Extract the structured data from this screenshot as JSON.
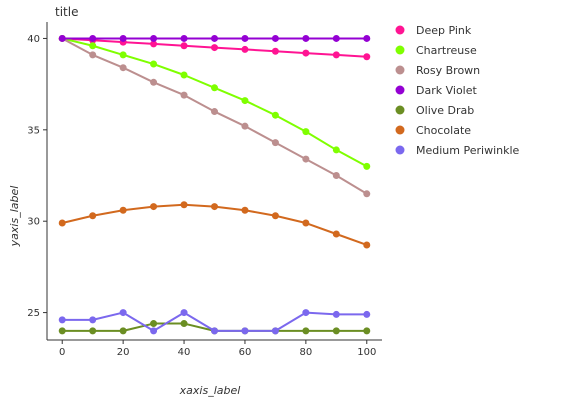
{
  "chart_data": {
    "type": "line",
    "title": "title",
    "xlabel": "xaxis_label",
    "ylabel": "yaxis_label",
    "xlim": [
      -5,
      105
    ],
    "ylim": [
      23.5,
      40.9
    ],
    "x_ticks": [
      0,
      20,
      40,
      60,
      80,
      100
    ],
    "y_ticks": [
      25,
      30,
      35,
      40
    ],
    "grid": false,
    "legend_position": "right",
    "x": [
      0,
      10,
      20,
      30,
      40,
      50,
      60,
      70,
      80,
      90,
      100
    ],
    "series": [
      {
        "name": "Deep Pink",
        "color": "#ff1493",
        "values": [
          40.0,
          39.9,
          39.8,
          39.7,
          39.6,
          39.5,
          39.4,
          39.3,
          39.2,
          39.1,
          39.0
        ]
      },
      {
        "name": "Chartreuse",
        "color": "#7fff00",
        "values": [
          40.0,
          39.6,
          39.1,
          38.6,
          38.0,
          37.3,
          36.6,
          35.8,
          34.9,
          33.9,
          33.0
        ]
      },
      {
        "name": "Rosy Brown",
        "color": "#bc8f8f",
        "values": [
          40.0,
          39.1,
          38.4,
          37.6,
          36.9,
          36.0,
          35.2,
          34.3,
          33.4,
          32.5,
          31.5
        ]
      },
      {
        "name": "Dark Violet",
        "color": "#9400d3",
        "values": [
          40.0,
          40.0,
          40.0,
          40.0,
          40.0,
          40.0,
          40.0,
          40.0,
          40.0,
          40.0,
          40.0
        ]
      },
      {
        "name": "Olive Drab",
        "color": "#6b8e23",
        "values": [
          24.0,
          24.0,
          24.0,
          24.4,
          24.4,
          24.0,
          24.0,
          24.0,
          24.0,
          24.0,
          24.0
        ]
      },
      {
        "name": "Chocolate",
        "color": "#d2691e",
        "values": [
          29.9,
          30.3,
          30.6,
          30.8,
          30.9,
          30.8,
          30.6,
          30.3,
          29.9,
          29.3,
          28.7
        ]
      },
      {
        "name": "Medium Periwinkle",
        "color": "#7b68ee",
        "values": [
          24.6,
          24.6,
          25.0,
          24.0,
          25.0,
          24.0,
          24.0,
          24.0,
          25.0,
          24.9,
          24.9
        ]
      }
    ]
  }
}
